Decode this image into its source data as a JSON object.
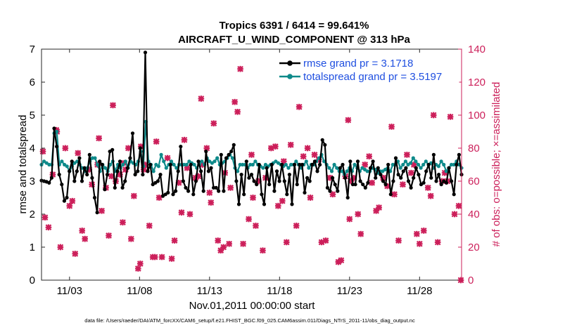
{
  "chart_data": {
    "type": "line",
    "title": "Tropics 6391 / 6414 = 99.641%",
    "subtitle": "AIRCRAFT_U_WIND_COMPONENT @ 313 hPa",
    "xlabel": "Nov.01,2011 00:00:00 start",
    "ylabel": "rmse and totalspread",
    "ylabel_right": "# of obs: o=possible; ×=assimilated",
    "footer": "data file: /Users/raeder/DAI/ATM_forcXX/CAM6_setup/f.e21.FHIST_BGC.f09_025.CAM6assim.011/Diags_NTrS_2011-11/obs_diag_output.nc",
    "xlim": [
      1,
      31
    ],
    "ylim": [
      0,
      7
    ],
    "ylim_right": [
      0,
      140
    ],
    "x_ticks": [
      3,
      8,
      13,
      18,
      23,
      28
    ],
    "x_tick_labels": [
      "11/03",
      "11/08",
      "11/13",
      "11/18",
      "11/23",
      "11/28"
    ],
    "y_ticks": [
      0,
      1,
      2,
      3,
      4,
      5,
      6,
      7
    ],
    "y_tick_labels": [
      "0",
      "1",
      "2",
      "3",
      "4",
      "5",
      "6",
      "7"
    ],
    "y_ticks_right": [
      0,
      20,
      40,
      60,
      80,
      100,
      120,
      140
    ],
    "y_tick_labels_right": [
      "0",
      "20",
      "40",
      "60",
      "80",
      "100",
      "120",
      "140"
    ],
    "legend": [
      {
        "label": "rmse grand pr = 3.1718",
        "color": "#000000"
      },
      {
        "label": "totalspread grand pr = 3.5197",
        "color": "#0e8a8a"
      }
    ],
    "legend_position": "top-right",
    "colors": {
      "rmse": "#000000",
      "spread": "#0e8a8a",
      "obs": "#cc1f5a"
    },
    "series": [
      {
        "name": "rmse",
        "values": [
          3.02,
          3.0,
          2.98,
          2.95,
          3.1,
          4.6,
          4.05,
          3.2,
          2.9,
          2.4,
          2.5,
          3.3,
          3.6,
          3.0,
          3.3,
          3.7,
          3.0,
          3.4,
          3.2,
          3.8,
          3.1,
          2.5,
          2.05,
          3.6,
          3.5,
          2.75,
          3.2,
          3.9,
          3.95,
          2.8,
          3.3,
          3.6,
          2.8,
          3.0,
          3.4,
          3.7,
          4.45,
          3.2,
          3.3,
          4.0,
          3.2,
          6.9,
          3.3,
          3.5,
          2.9,
          2.95,
          3.0,
          3.2,
          2.55,
          2.6,
          2.65,
          3.5,
          2.6,
          2.7,
          3.3,
          4.05,
          3.0,
          2.8,
          2.7,
          3.5,
          2.6,
          3.0,
          3.6,
          3.3,
          2.7,
          3.9,
          3.3,
          3.4,
          2.8,
          2.8,
          2.7,
          3.8,
          2.7,
          3.7,
          3.8,
          3.9,
          4.1,
          3.0,
          2.3,
          3.2,
          2.6,
          3.6,
          3.1,
          3.2,
          3.0,
          2.9,
          3.5,
          2.6,
          2.3,
          3.4,
          2.9,
          3.5,
          2.7,
          3.3,
          3.0,
          3.5,
          3.0,
          2.6,
          3.2,
          2.3,
          3.5,
          2.9,
          3.5,
          3.5,
          2.65,
          3.1,
          3.0,
          3.5,
          3.6,
          3.3,
          3.5,
          4.25,
          4.1,
          2.8,
          2.7,
          3.1,
          2.9,
          2.7,
          3.4,
          3.5,
          3.1,
          2.5,
          3.6,
          2.9,
          2.9,
          3.6,
          3.0,
          2.9,
          2.8,
          2.95,
          3.4,
          3.6,
          3.1,
          3.4,
          3.2,
          3.0,
          2.9,
          3.5,
          2.6,
          3.0,
          3.7,
          3.2,
          3.1,
          3.3,
          3.4,
          3.0,
          2.8,
          3.1,
          3.4,
          3.2,
          2.9,
          2.95,
          3.3,
          3.5,
          3.1,
          3.8,
          3.0,
          3.2,
          2.9,
          3.0,
          2.95,
          3.4,
          3.0,
          2.6,
          3.5,
          3.8,
          3.2
        ]
      },
      {
        "name": "totalspread",
        "values": [
          3.5,
          3.6,
          3.55,
          3.5,
          3.5,
          4.45,
          4.5,
          3.5,
          3.6,
          3.5,
          3.45,
          3.3,
          3.45,
          3.55,
          3.6,
          3.5,
          3.4,
          3.3,
          3.4,
          3.6,
          3.7,
          3.7,
          3.5,
          3.3,
          3.5,
          3.4,
          3.3,
          3.5,
          3.6,
          3.3,
          3.5,
          3.4,
          3.5,
          3.6,
          3.4,
          3.6,
          3.55,
          3.5,
          3.6,
          3.9,
          3.45,
          4.8,
          3.6,
          3.5,
          3.3,
          3.5,
          3.45,
          3.8,
          3.6,
          3.4,
          3.5,
          3.6,
          3.5,
          3.4,
          3.5,
          3.5,
          3.5,
          3.5,
          3.6,
          3.55,
          3.5,
          3.4,
          3.5,
          3.6,
          3.5,
          3.7,
          3.6,
          3.55,
          3.6,
          3.7,
          3.5,
          3.55,
          3.6,
          3.7,
          3.8,
          3.7,
          3.4,
          3.3,
          3.5,
          3.5,
          3.5,
          3.4,
          3.5,
          3.5,
          3.6,
          3.5,
          3.45,
          3.4,
          3.5,
          3.45,
          3.5,
          3.55,
          3.6,
          3.55,
          3.5,
          3.45,
          3.5,
          3.4,
          3.5,
          3.5,
          3.6,
          3.5,
          3.4,
          3.5,
          3.6,
          3.4,
          3.5,
          3.5,
          3.6,
          3.7,
          3.8,
          3.6,
          3.5,
          3.4,
          3.3,
          3.5,
          3.4,
          3.3,
          3.3,
          3.2,
          3.3,
          3.4,
          3.3,
          3.5,
          3.4,
          3.3,
          3.4,
          3.35,
          3.3,
          3.3,
          3.4,
          3.35,
          3.25,
          3.3,
          3.3,
          3.35,
          3.4,
          3.3,
          3.5,
          3.5,
          3.6,
          3.4,
          3.5,
          3.6,
          3.5,
          3.55,
          3.7,
          3.6,
          3.5,
          3.4,
          3.5,
          3.6,
          3.5,
          3.55,
          3.4,
          3.5,
          3.45,
          3.6,
          3.5,
          3.3,
          3.4,
          3.5,
          3.5,
          3.6,
          3.5,
          3.4
        ]
      },
      {
        "name": "obs_assimilated",
        "x": [
          1.1,
          1.25,
          1.5,
          1.8,
          2.05,
          2.1,
          2.35,
          2.7,
          3.0,
          3.2,
          3.4,
          3.6,
          3.9,
          4.1,
          4.4,
          4.6,
          5.0,
          5.1,
          5.3,
          5.6,
          5.8,
          6.0,
          6.1,
          6.3,
          6.6,
          6.8,
          6.9,
          7.0,
          7.2,
          7.4,
          7.6,
          7.9,
          8.05,
          8.1,
          8.3,
          8.4,
          8.7,
          8.95,
          9.1,
          9.2,
          9.4,
          9.6,
          10.0,
          10.3,
          10.5,
          10.8,
          11.0,
          11.2,
          11.4,
          11.6,
          12.0,
          12.2,
          12.4,
          12.5,
          12.8,
          13.0,
          13.1,
          13.3,
          13.6,
          13.8,
          14.0,
          14.1,
          14.4,
          14.5,
          14.8,
          15.0,
          15.2,
          15.4,
          15.8,
          16.0,
          16.1,
          16.3,
          16.5,
          16.8,
          17.0,
          17.4,
          17.7,
          17.9,
          18.2,
          18.3,
          18.5,
          18.8,
          19.2,
          19.4,
          19.7,
          20.0,
          20.2,
          20.5,
          20.8,
          21.0,
          21.3,
          21.6,
          21.8,
          22.2,
          22.4,
          22.7,
          22.9,
          23.0,
          23.1,
          23.3,
          23.6,
          23.8,
          24.1,
          24.4,
          24.6,
          24.9,
          25.1,
          25.4,
          25.7,
          26.0,
          26.2,
          26.5,
          26.8,
          27.1,
          27.4,
          27.6,
          27.8,
          28.0,
          28.3,
          28.6,
          28.8,
          29.0,
          29.3,
          29.6,
          29.8,
          30.0,
          30.2,
          30.5,
          30.8,
          30.95
        ],
        "values": [
          78,
          38,
          32,
          64,
          91,
          90,
          20,
          80,
          45,
          48,
          16,
          77,
          30,
          25,
          67,
          58,
          70,
          86,
          42,
          56,
          27,
          63,
          106,
          60,
          64,
          35,
          71,
          67,
          80,
          25,
          51,
          7,
          10,
          81,
          67,
          70,
          33,
          14,
          14,
          84,
          50,
          14,
          74,
          13,
          24,
          59,
          41,
          85,
          68,
          40,
          62,
          63,
          110,
          70,
          80,
          53,
          47,
          95,
          24,
          18,
          20,
          65,
          22,
          56,
          108,
          102,
          128,
          22,
          37,
          76,
          50,
          33,
          60,
          18,
          62,
          80,
          81,
          45,
          48,
          72,
          23,
          82,
          33,
          105,
          75,
          80,
          50,
          76,
          73,
          23,
          24,
          62,
          52,
          11,
          12,
          63,
          97,
          37,
          60,
          62,
          40,
          28,
          70,
          75,
          59,
          42,
          44,
          62,
          57,
          93,
          52,
          24,
          58,
          76,
          65,
          70,
          28,
          22,
          30,
          56,
          51,
          100,
          23,
          60,
          65,
          60,
          99,
          40,
          45,
          0
        ]
      }
    ]
  }
}
